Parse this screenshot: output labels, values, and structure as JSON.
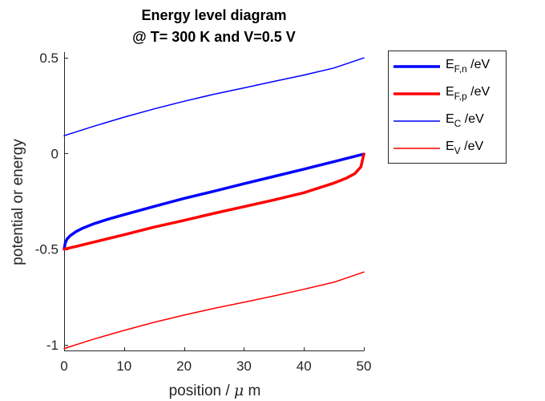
{
  "chart_data": {
    "type": "line",
    "title": [
      "Energy level diagram",
      "@ T= 300 K and V=0.5 V"
    ],
    "xlabel": {
      "text": "position / ",
      "mu": "μ",
      "unit": " m"
    },
    "ylabel": "potential or energy",
    "xlim": [
      0,
      50
    ],
    "ylim": [
      -1.03,
      0.53
    ],
    "xticks": [
      0,
      10,
      20,
      30,
      40,
      50
    ],
    "xtick_labels": [
      "0",
      "10",
      "20",
      "30",
      "40",
      "50"
    ],
    "yticks": [
      0.5,
      0,
      -0.5,
      -1
    ],
    "ytick_labels": [
      "0.5",
      "0",
      "-0.5",
      "-1"
    ],
    "grid": false,
    "legend_position": "outside-right",
    "series": [
      {
        "legend_main": "E",
        "legend_sub": "F,n",
        "legend_unit": " /eV",
        "color": "#0000ff",
        "line_width": 3.5,
        "x": [
          0,
          0.2,
          0.5,
          1,
          2,
          3,
          5,
          7.5,
          10,
          15,
          20,
          25,
          30,
          35,
          40,
          45,
          50
        ],
        "y": [
          -0.5,
          -0.467,
          -0.447,
          -0.43,
          -0.408,
          -0.392,
          -0.367,
          -0.342,
          -0.32,
          -0.277,
          -0.235,
          -0.197,
          -0.158,
          -0.12,
          -0.082,
          -0.043,
          -0.003
        ]
      },
      {
        "legend_main": "E",
        "legend_sub": "F,p",
        "legend_unit": " /eV",
        "color": "#ff0000",
        "line_width": 3.5,
        "x": [
          0,
          0.5,
          1,
          2,
          3,
          5,
          10,
          15,
          20,
          25,
          30,
          35,
          40,
          45,
          47,
          48.5,
          49.5,
          50
        ],
        "y": [
          -0.5,
          -0.497,
          -0.493,
          -0.486,
          -0.478,
          -0.463,
          -0.425,
          -0.385,
          -0.35,
          -0.313,
          -0.278,
          -0.243,
          -0.205,
          -0.155,
          -0.13,
          -0.105,
          -0.07,
          -0.003
        ]
      },
      {
        "legend_main": "E",
        "legend_sub": "C",
        "legend_unit": " /eV",
        "color": "#0000ff",
        "line_width": 1.5,
        "x": [
          0,
          5,
          10,
          15,
          20,
          25,
          30,
          35,
          40,
          45,
          50
        ],
        "y": [
          0.093,
          0.143,
          0.19,
          0.233,
          0.273,
          0.31,
          0.343,
          0.377,
          0.41,
          0.447,
          0.5
        ]
      },
      {
        "legend_main": "E",
        "legend_sub": "V",
        "legend_unit": " /eV",
        "color": "#ff0000",
        "line_width": 1.5,
        "x": [
          0,
          5,
          10,
          15,
          20,
          25,
          30,
          35,
          40,
          45,
          50
        ],
        "y": [
          -1.02,
          -0.97,
          -0.925,
          -0.883,
          -0.845,
          -0.81,
          -0.778,
          -0.745,
          -0.71,
          -0.673,
          -0.62
        ]
      }
    ]
  }
}
